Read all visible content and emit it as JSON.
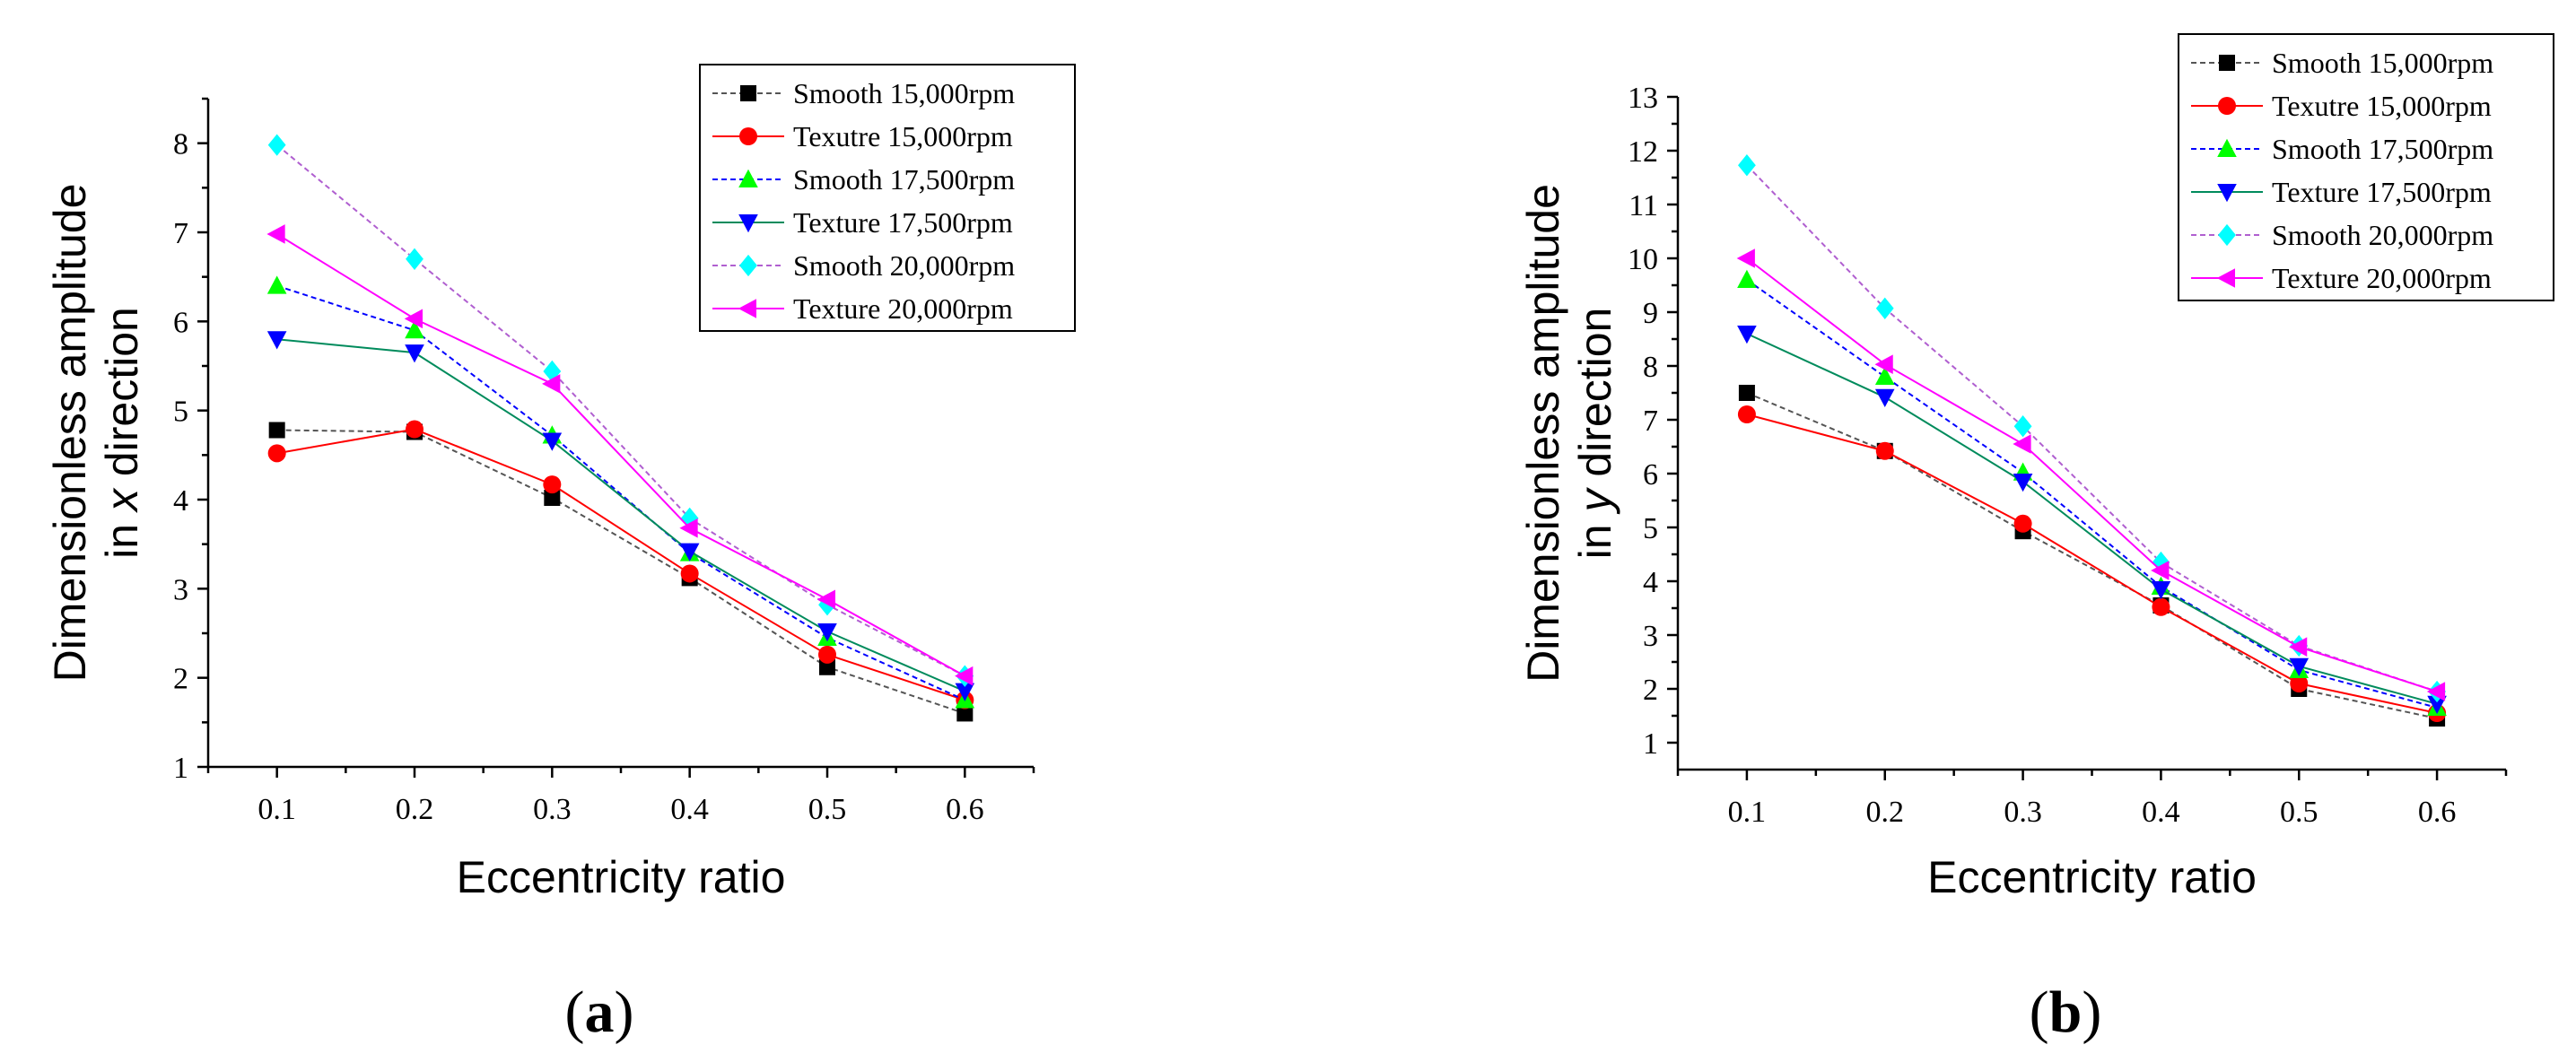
{
  "chart_data": [
    {
      "type": "line",
      "panel": "a",
      "xlabel": "Eccentricity ratio",
      "ylabel_line1": "Dimensionless amplitude",
      "ylabel_line2_prefix": "in ",
      "ylabel_line2_var": "x",
      "ylabel_line2_suffix": " direction",
      "x": [
        0.1,
        0.2,
        0.3,
        0.4,
        0.5,
        0.6
      ],
      "x_tick_labels": [
        "0.1",
        "0.2",
        "0.3",
        "0.4",
        "0.5",
        "0.6"
      ],
      "xlim": [
        0.05,
        0.65
      ],
      "ylim": [
        1,
        8.5
      ],
      "y_ticks": [
        1,
        2,
        3,
        4,
        5,
        6,
        7,
        8
      ],
      "y_tick_labels": [
        "1",
        "2",
        "3",
        "4",
        "5",
        "6",
        "7",
        "8"
      ],
      "legend_position": "top-right",
      "series": [
        {
          "name": "Smooth 15,000rpm",
          "color": "#000000",
          "line_color": "#555555",
          "marker": "square",
          "dash": "dashed",
          "values": [
            4.78,
            4.76,
            4.02,
            3.12,
            2.12,
            1.6
          ]
        },
        {
          "name": "Texutre 15,000rpm",
          "color": "#ff0000",
          "line_color": "#ff0000",
          "marker": "circle",
          "dash": "solid",
          "values": [
            4.52,
            4.79,
            4.17,
            3.17,
            2.26,
            1.75
          ]
        },
        {
          "name": "Smooth 17,500rpm",
          "color": "#00ff00",
          "line_color": "#0000ff",
          "marker": "triangle-up",
          "dash": "dashed",
          "values": [
            6.4,
            5.9,
            4.72,
            3.4,
            2.45,
            1.75
          ]
        },
        {
          "name": "Texture 17,500rpm",
          "color": "#0000ff",
          "line_color": "#008b5c",
          "marker": "triangle-down",
          "dash": "solid",
          "values": [
            5.8,
            5.65,
            4.66,
            3.42,
            2.52,
            1.85
          ]
        },
        {
          "name": "Smooth 20,000rpm",
          "color": "#00ffff",
          "line_color": "#b05fd0",
          "marker": "diamond",
          "dash": "dashed",
          "values": [
            7.98,
            6.7,
            5.44,
            3.79,
            2.82,
            2.02
          ]
        },
        {
          "name": "Texture 20,000rpm",
          "color": "#ff00ff",
          "line_color": "#ff00ff",
          "marker": "triangle-left",
          "dash": "solid",
          "values": [
            6.98,
            6.03,
            5.3,
            3.68,
            2.88,
            2.02
          ]
        }
      ]
    },
    {
      "type": "line",
      "panel": "b",
      "xlabel": "Eccentricity ratio",
      "ylabel_line1": "Dimensionless amplitude",
      "ylabel_line2_prefix": "in ",
      "ylabel_line2_var": "y",
      "ylabel_line2_suffix": " direction",
      "x": [
        0.1,
        0.2,
        0.3,
        0.4,
        0.5,
        0.6
      ],
      "x_tick_labels": [
        "0.1",
        "0.2",
        "0.3",
        "0.4",
        "0.5",
        "0.6"
      ],
      "xlim": [
        0.05,
        0.65
      ],
      "ylim": [
        0.5,
        13
      ],
      "y_ticks": [
        1,
        2,
        3,
        4,
        5,
        6,
        7,
        8,
        9,
        10,
        11,
        12,
        13
      ],
      "y_tick_labels": [
        "1",
        "2",
        "3",
        "4",
        "5",
        "6",
        "7",
        "8",
        "9",
        "10",
        "11",
        "12",
        "13"
      ],
      "legend_position": "top-right",
      "series": [
        {
          "name": "Smooth 15,000rpm",
          "color": "#000000",
          "line_color": "#555555",
          "marker": "square",
          "dash": "dashed",
          "values": [
            7.5,
            6.42,
            4.93,
            3.55,
            2.0,
            1.45
          ]
        },
        {
          "name": "Texutre 15,000rpm",
          "color": "#ff0000",
          "line_color": "#ff0000",
          "marker": "circle",
          "dash": "solid",
          "values": [
            7.1,
            6.42,
            5.07,
            3.52,
            2.1,
            1.55
          ]
        },
        {
          "name": "Smooth 17,500rpm",
          "color": "#00ff00",
          "line_color": "#0000ff",
          "marker": "triangle-up",
          "dash": "dashed",
          "values": [
            9.6,
            7.8,
            6.02,
            3.9,
            2.35,
            1.65
          ]
        },
        {
          "name": "Texture 17,500rpm",
          "color": "#0000ff",
          "line_color": "#008b5c",
          "marker": "triangle-down",
          "dash": "solid",
          "values": [
            8.6,
            7.42,
            5.85,
            3.85,
            2.42,
            1.72
          ]
        },
        {
          "name": "Smooth 20,000rpm",
          "color": "#00ffff",
          "line_color": "#b05fd0",
          "marker": "diamond",
          "dash": "dashed",
          "values": [
            11.73,
            9.07,
            6.88,
            4.35,
            2.8,
            1.95
          ]
        },
        {
          "name": "Texture 20,000rpm",
          "color": "#ff00ff",
          "line_color": "#ff00ff",
          "marker": "triangle-left",
          "dash": "solid",
          "values": [
            10.0,
            8.03,
            6.55,
            4.2,
            2.78,
            1.95
          ]
        }
      ]
    }
  ],
  "panel_labels": {
    "a": {
      "open": "(",
      "letter": "a",
      "close": ")"
    },
    "b": {
      "open": "(",
      "letter": "b",
      "close": ")"
    }
  }
}
